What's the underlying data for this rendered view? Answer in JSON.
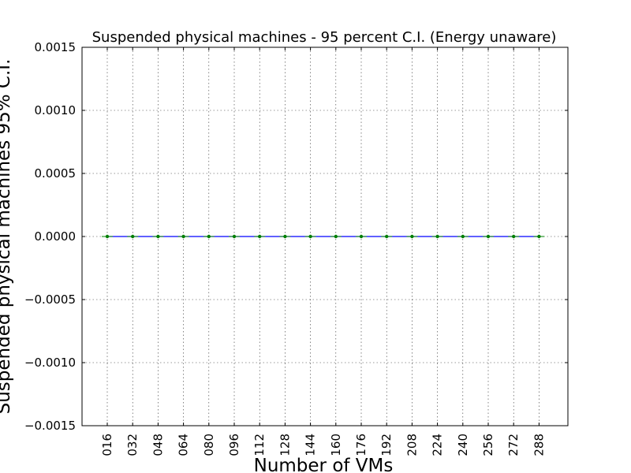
{
  "chart_data": {
    "type": "line",
    "title": "Suspended physical machines - 95 percent C.I. (Energy unaware)",
    "xlabel": "Number of VMs",
    "ylabel": "Suspended physical machines 95% C.I.",
    "categories": [
      "016",
      "032",
      "048",
      "064",
      "080",
      "096",
      "112",
      "128",
      "144",
      "160",
      "176",
      "192",
      "208",
      "224",
      "240",
      "256",
      "272",
      "288"
    ],
    "ylim": [
      -0.0015,
      0.0015
    ],
    "yticks": [
      "−0.0015",
      "−0.0010",
      "−0.0005",
      "0.0000",
      "0.0005",
      "0.0010",
      "0.0015"
    ],
    "ytick_values": [
      -0.0015,
      -0.001,
      -0.0005,
      0.0,
      0.0005,
      0.001,
      0.0015
    ],
    "grid": true,
    "series": [
      {
        "values": [
          0,
          0,
          0,
          0,
          0,
          0,
          0,
          0,
          0,
          0,
          0,
          0,
          0,
          0,
          0,
          0,
          0,
          0
        ],
        "line_color": "#0000ff",
        "marker_color": "#008000"
      }
    ]
  }
}
